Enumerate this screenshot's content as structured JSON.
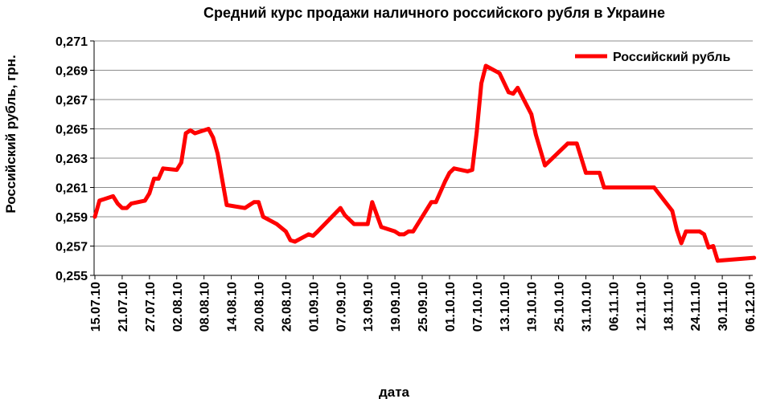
{
  "chart_data": {
    "type": "line",
    "title": "Средний курс продажи  наличного российского рубля в Украине",
    "xlabel": "дата",
    "ylabel": "Российский рубль, грн.",
    "ylim": [
      0.255,
      0.271
    ],
    "y_ticks": [
      "0,255",
      "0,257",
      "0,259",
      "0,261",
      "0,263",
      "0,265",
      "0,267",
      "0,269",
      "0,271"
    ],
    "y_tick_values": [
      0.255,
      0.257,
      0.259,
      0.261,
      0.263,
      0.265,
      0.267,
      0.269,
      0.271
    ],
    "x_start": "2010-07-15",
    "x_end": "2010-12-06",
    "x_ticks": [
      "15.07.10",
      "21.07.10",
      "27.07.10",
      "02.08.10",
      "08.08.10",
      "14.08.10",
      "20.08.10",
      "26.08.10",
      "01.09.10",
      "07.09.10",
      "13.09.10",
      "19.09.10",
      "25.09.10",
      "01.10.10",
      "07.10.10",
      "13.10.10",
      "19.10.10",
      "25.10.10",
      "31.10.10",
      "06.11.10",
      "12.11.10",
      "18.11.10",
      "24.11.10",
      "30.11.10",
      "06.12.10"
    ],
    "grid": true,
    "legend_position": "top-right",
    "series": [
      {
        "name": "Российский рубль",
        "color": "#ff0000",
        "points": [
          [
            "2010-07-15",
            0.259
          ],
          [
            "2010-07-16",
            0.2601
          ],
          [
            "2010-07-19",
            0.2604
          ],
          [
            "2010-07-20",
            0.2599
          ],
          [
            "2010-07-21",
            0.2596
          ],
          [
            "2010-07-22",
            0.2596
          ],
          [
            "2010-07-23",
            0.2599
          ],
          [
            "2010-07-26",
            0.2601
          ],
          [
            "2010-07-27",
            0.2606
          ],
          [
            "2010-07-28",
            0.2616
          ],
          [
            "2010-07-29",
            0.2616
          ],
          [
            "2010-07-30",
            0.2623
          ],
          [
            "2010-08-02",
            0.2622
          ],
          [
            "2010-08-03",
            0.2627
          ],
          [
            "2010-08-04",
            0.2647
          ],
          [
            "2010-08-05",
            0.2649
          ],
          [
            "2010-08-06",
            0.2647
          ],
          [
            "2010-08-09",
            0.265
          ],
          [
            "2010-08-10",
            0.2644
          ],
          [
            "2010-08-11",
            0.2633
          ],
          [
            "2010-08-13",
            0.2598
          ],
          [
            "2010-08-17",
            0.2596
          ],
          [
            "2010-08-18",
            0.2598
          ],
          [
            "2010-08-19",
            0.26
          ],
          [
            "2010-08-20",
            0.26
          ],
          [
            "2010-08-21",
            0.259
          ],
          [
            "2010-08-24",
            0.2585
          ],
          [
            "2010-08-26",
            0.258
          ],
          [
            "2010-08-27",
            0.2574
          ],
          [
            "2010-08-28",
            0.2573
          ],
          [
            "2010-08-31",
            0.2578
          ],
          [
            "2010-09-01",
            0.2577
          ],
          [
            "2010-09-02",
            0.258
          ],
          [
            "2010-09-07",
            0.2596
          ],
          [
            "2010-09-08",
            0.2591
          ],
          [
            "2010-09-10",
            0.2585
          ],
          [
            "2010-09-13",
            0.2585
          ],
          [
            "2010-09-14",
            0.26
          ],
          [
            "2010-09-16",
            0.2583
          ],
          [
            "2010-09-19",
            0.258
          ],
          [
            "2010-09-20",
            0.2578
          ],
          [
            "2010-09-21",
            0.2578
          ],
          [
            "2010-09-22",
            0.258
          ],
          [
            "2010-09-23",
            0.258
          ],
          [
            "2010-09-27",
            0.26
          ],
          [
            "2010-09-28",
            0.26
          ],
          [
            "2010-09-30",
            0.2614
          ],
          [
            "2010-10-01",
            0.262
          ],
          [
            "2010-10-02",
            0.2623
          ],
          [
            "2010-10-05",
            0.2621
          ],
          [
            "2010-10-06",
            0.2622
          ],
          [
            "2010-10-07",
            0.2648
          ],
          [
            "2010-10-08",
            0.2681
          ],
          [
            "2010-10-09",
            0.2693
          ],
          [
            "2010-10-12",
            0.2688
          ],
          [
            "2010-10-14",
            0.2675
          ],
          [
            "2010-10-15",
            0.2674
          ],
          [
            "2010-10-16",
            0.2678
          ],
          [
            "2010-10-19",
            0.266
          ],
          [
            "2010-10-20",
            0.2646
          ],
          [
            "2010-10-22",
            0.2625
          ],
          [
            "2010-10-25",
            0.2634
          ],
          [
            "2010-10-27",
            0.264
          ],
          [
            "2010-10-29",
            0.264
          ],
          [
            "2010-10-31",
            0.262
          ],
          [
            "2010-11-03",
            0.262
          ],
          [
            "2010-11-04",
            0.261
          ],
          [
            "2010-11-15",
            0.261
          ],
          [
            "2010-11-19",
            0.2594
          ],
          [
            "2010-11-20",
            0.2581
          ],
          [
            "2010-11-21",
            0.2572
          ],
          [
            "2010-11-22",
            0.258
          ],
          [
            "2010-11-25",
            0.258
          ],
          [
            "2010-11-26",
            0.2578
          ],
          [
            "2010-11-27",
            0.2569
          ],
          [
            "2010-11-28",
            0.257
          ],
          [
            "2010-11-29",
            0.256
          ],
          [
            "2010-12-07",
            0.2562
          ]
        ]
      }
    ]
  }
}
